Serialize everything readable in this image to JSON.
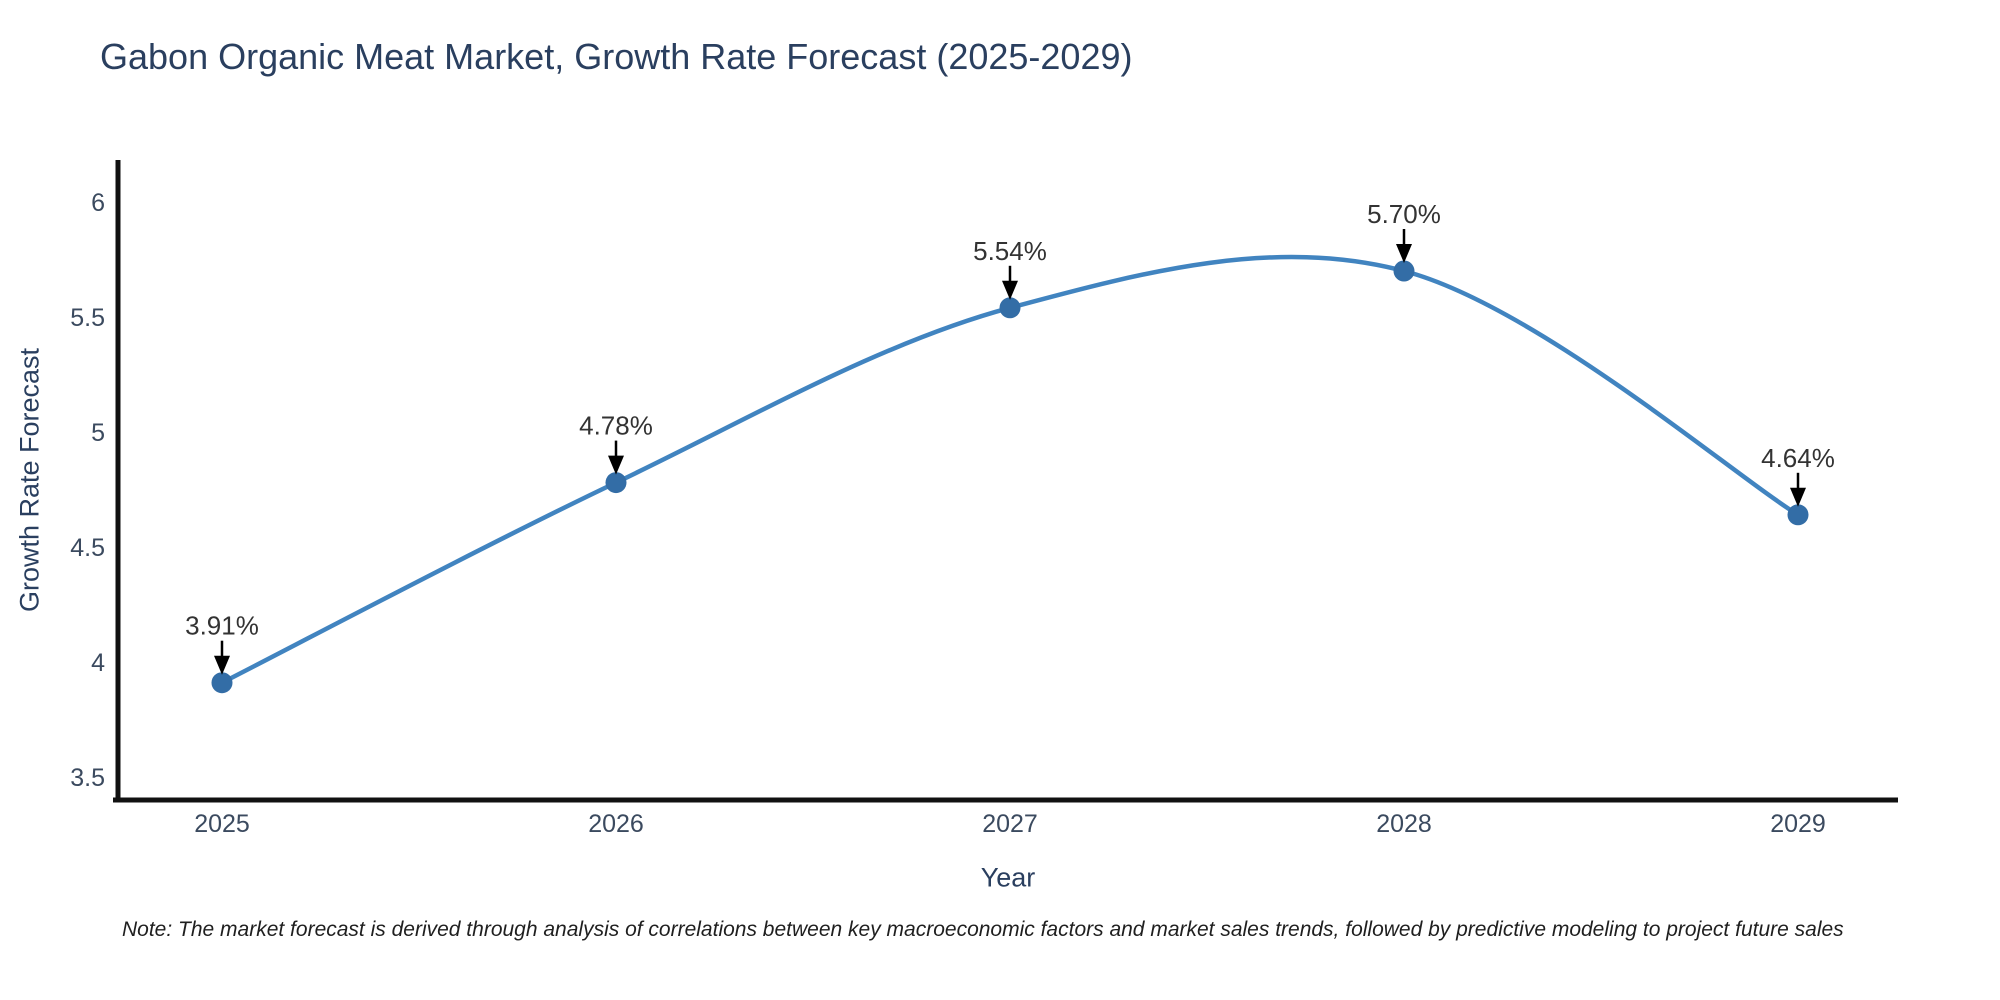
{
  "note": "Note: The market forecast is derived through analysis of correlations between key macroeconomic factors and market sales trends, followed by predictive modeling to project future sales",
  "chart_data": {
    "type": "line",
    "title": "Gabon Organic Meat Market, Growth Rate Forecast (2025-2029)",
    "xlabel": "Year",
    "ylabel": "Growth Rate Forecast",
    "categories": [
      "2025",
      "2026",
      "2027",
      "2028",
      "2029"
    ],
    "series": [
      {
        "name": "Growth Rate Forecast",
        "values": [
          3.91,
          4.78,
          5.54,
          5.7,
          4.64
        ],
        "point_labels": [
          "3.91%",
          "4.78%",
          "5.54%",
          "5.70%",
          "4.64%"
        ]
      }
    ],
    "yticks": [
      3.5,
      4,
      4.5,
      5,
      5.5,
      6
    ],
    "ylim": [
      3.4,
      6.2
    ],
    "line_shape": "spline",
    "grid": false,
    "legend_position": "none",
    "colors": {
      "line": "#4184c0",
      "marker": "#336da6",
      "axis": "#111111",
      "arrow": "#000000",
      "heading_text": "#2a3f5f",
      "annotation_text": "#333333"
    }
  }
}
